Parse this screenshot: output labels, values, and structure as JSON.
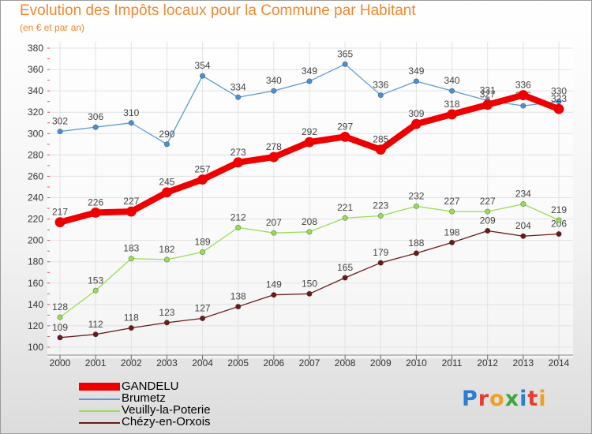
{
  "header": {
    "title": "Evolution des Impôts locaux pour la Commune par Habitant",
    "subtitle": "(en € et par an)"
  },
  "brand": {
    "logo_text": "Proxiti"
  },
  "colors": {
    "title": "#f08830",
    "series": [
      "#ee0000",
      "#5b9bd5",
      "#99dd55",
      "#6b1a1a"
    ],
    "markers": [
      "#ee0000",
      "#4a90d9",
      "#99dd55",
      "#6b1a1a"
    ],
    "legend_text": "#5b9bd5",
    "grid": "#e2e2e2",
    "axis_text": "#333333",
    "label_text": "#444444"
  },
  "chart_data": {
    "type": "line",
    "title": "Evolution des Impôts locaux pour la Commune par Habitant",
    "subtitle": "(en € et par an)",
    "xlabel": "",
    "ylabel": "",
    "ylim": [
      100,
      380
    ],
    "yticks": [
      100,
      120,
      140,
      160,
      180,
      200,
      220,
      240,
      260,
      280,
      300,
      320,
      340,
      360,
      380
    ],
    "grid": true,
    "legend_position": "bottom-left",
    "x": [
      "2000",
      "2001",
      "2002",
      "2003",
      "2004",
      "2005",
      "2006",
      "2007",
      "2008",
      "2009",
      "2010",
      "2011",
      "2012",
      "2013",
      "2014"
    ],
    "series": [
      {
        "name": "GANDELU",
        "values": [
          217,
          226,
          227,
          245,
          257,
          273,
          278,
          292,
          297,
          285,
          309,
          318,
          327,
          336,
          323
        ]
      },
      {
        "name": "Brumetz",
        "values": [
          302,
          306,
          310,
          290,
          354,
          334,
          340,
          349,
          365,
          336,
          349,
          340,
          331,
          326,
          330
        ]
      },
      {
        "name": "Veuilly-la-Poterie",
        "values": [
          128,
          153,
          183,
          182,
          189,
          212,
          207,
          208,
          221,
          223,
          232,
          227,
          227,
          234,
          219
        ]
      },
      {
        "name": "Chézy-en-Orxois",
        "values": [
          109,
          112,
          118,
          123,
          127,
          138,
          149,
          150,
          165,
          179,
          188,
          198,
          209,
          204,
          206
        ]
      }
    ]
  }
}
